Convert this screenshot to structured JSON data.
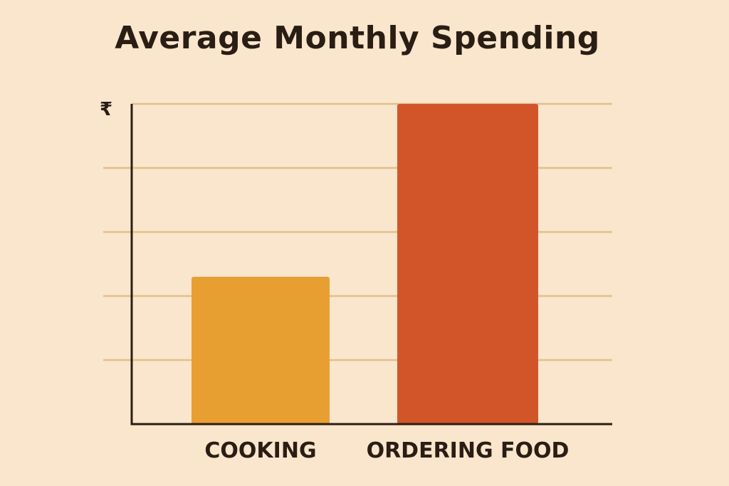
{
  "chart_data": {
    "type": "bar",
    "title": "Average Monthly Spending",
    "ylabel": "₹",
    "xlabel": "",
    "categories": [
      "COOKING",
      "ORDERING FOOD"
    ],
    "values": [
      46,
      100
    ],
    "ylim": [
      0,
      100
    ],
    "grid": true,
    "gridlines": 5,
    "colors": [
      "#e89f32",
      "#d2552a"
    ],
    "axis_color": "#2a1d14",
    "grid_color": "#e3bf8c"
  }
}
